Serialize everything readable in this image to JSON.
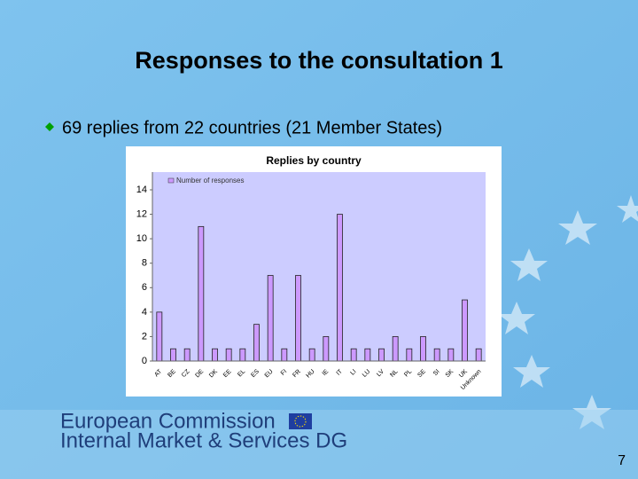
{
  "slide": {
    "title": "Responses to the consultation 1",
    "bullet": "69 replies from 22 countries (21 Member States)",
    "footer_line1": "European Commission",
    "footer_line2": "Internal Market & Services DG",
    "page_number": "7"
  },
  "chart_data": {
    "type": "bar",
    "title": "Replies by country",
    "categories": [
      "AT",
      "BE",
      "CZ",
      "DE",
      "DK",
      "EE",
      "EL",
      "ES",
      "EU",
      "FI",
      "FR",
      "HU",
      "IE",
      "IT",
      "LI",
      "LU",
      "LV",
      "NL",
      "PL",
      "SE",
      "SI",
      "SK",
      "UK",
      "Unknown"
    ],
    "series": [
      {
        "name": "Number of responses",
        "color": "#cc99ff",
        "values": [
          4,
          1,
          1,
          11,
          1,
          1,
          1,
          3,
          7,
          1,
          7,
          1,
          2,
          12,
          1,
          1,
          1,
          2,
          1,
          2,
          1,
          1,
          5,
          1
        ]
      }
    ],
    "ylim": [
      0,
      14
    ],
    "yticks": [
      0,
      2,
      4,
      6,
      8,
      10,
      12,
      14
    ],
    "legend": "top-left"
  }
}
